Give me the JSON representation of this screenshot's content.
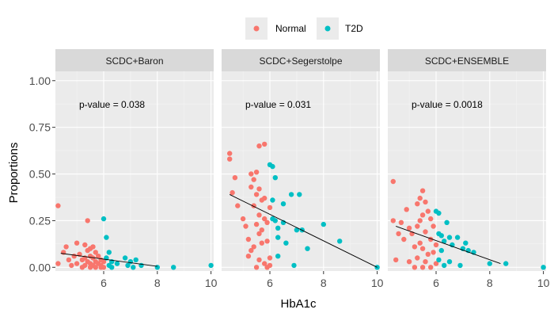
{
  "chart_data": {
    "type": "scatter",
    "xlabel": "HbA1c",
    "ylabel": "Proportions",
    "xlim": [
      4.2,
      10.1
    ],
    "ylim": [
      -0.02,
      1.05
    ],
    "x_ticks": [
      6,
      8,
      10
    ],
    "x_tick_labels": [
      "6",
      "8",
      "10"
    ],
    "y_ticks": [
      0,
      0.25,
      0.5,
      0.75,
      1.0
    ],
    "y_tick_labels": [
      "0.00",
      "0.25",
      "0.50",
      "0.75",
      "1.00"
    ],
    "grid": true,
    "legend": {
      "position": "top",
      "entries": [
        {
          "label": "Normal",
          "color": "#F8766D"
        },
        {
          "label": "T2D",
          "color": "#00BFC4"
        }
      ]
    },
    "panels": [
      {
        "strip": "SCDC+Baron",
        "annotation": "p-value = 0.038",
        "trend": {
          "x": [
            4.4,
            8.0
          ],
          "y": [
            0.075,
            0.005
          ]
        },
        "series": [
          {
            "name": "Normal",
            "points": [
              [
                4.3,
                0.33
              ],
              [
                4.3,
                0.02
              ],
              [
                4.5,
                0.08
              ],
              [
                4.6,
                0.11
              ],
              [
                4.7,
                0.04
              ],
              [
                4.8,
                0.01
              ],
              [
                4.9,
                0.06
              ],
              [
                5.0,
                0.13
              ],
              [
                5.0,
                0.02
              ],
              [
                5.1,
                0.07
              ],
              [
                5.2,
                0.04
              ],
              [
                5.2,
                0.0
              ],
              [
                5.3,
                0.12
              ],
              [
                5.3,
                0.05
              ],
              [
                5.3,
                0.01
              ],
              [
                5.4,
                0.25
              ],
              [
                5.4,
                0.09
              ],
              [
                5.4,
                0.03
              ],
              [
                5.5,
                0.1
              ],
              [
                5.5,
                0.06
              ],
              [
                5.5,
                0.02
              ],
              [
                5.5,
                0.0
              ],
              [
                5.6,
                0.11
              ],
              [
                5.6,
                0.05
              ],
              [
                5.6,
                0.01
              ],
              [
                5.7,
                0.08
              ],
              [
                5.7,
                0.03
              ],
              [
                5.7,
                0.0
              ],
              [
                5.8,
                0.06
              ],
              [
                5.8,
                0.02
              ],
              [
                5.9,
                0.04
              ],
              [
                5.9,
                0.01
              ],
              [
                5.9,
                0.0
              ],
              [
                6.0,
                0.03
              ],
              [
                6.0,
                0.0
              ]
            ]
          },
          {
            "name": "T2D",
            "points": [
              [
                6.0,
                0.26
              ],
              [
                6.1,
                0.16
              ],
              [
                6.1,
                0.05
              ],
              [
                6.2,
                0.08
              ],
              [
                6.2,
                0.01
              ],
              [
                6.3,
                0.03
              ],
              [
                6.3,
                0.0
              ],
              [
                6.5,
                0.02
              ],
              [
                6.8,
                0.05
              ],
              [
                6.9,
                0.01
              ],
              [
                7.0,
                0.03
              ],
              [
                7.1,
                0.0
              ],
              [
                7.2,
                0.04
              ],
              [
                7.4,
                0.01
              ],
              [
                8.0,
                0.0
              ],
              [
                8.6,
                0.0
              ],
              [
                10.0,
                0.01
              ]
            ]
          }
        ]
      },
      {
        "strip": "SCDC+Segerstolpe",
        "annotation": "p-value = 0.031",
        "trend": {
          "x": [
            4.5,
            10.0
          ],
          "y": [
            0.39,
            0.0
          ]
        },
        "series": [
          {
            "name": "Normal",
            "points": [
              [
                4.5,
                0.61
              ],
              [
                4.5,
                0.58
              ],
              [
                4.6,
                0.4
              ],
              [
                4.7,
                0.48
              ],
              [
                4.8,
                0.33
              ],
              [
                5.0,
                0.26
              ],
              [
                5.1,
                0.22
              ],
              [
                5.2,
                0.15
              ],
              [
                5.2,
                0.06
              ],
              [
                5.3,
                0.5
              ],
              [
                5.3,
                0.43
              ],
              [
                5.3,
                0.09
              ],
              [
                5.4,
                0.47
              ],
              [
                5.4,
                0.33
              ],
              [
                5.4,
                0.11
              ],
              [
                5.5,
                0.51
              ],
              [
                5.5,
                0.39
              ],
              [
                5.5,
                0.23
              ],
              [
                5.5,
                0.0
              ],
              [
                5.6,
                0.65
              ],
              [
                5.6,
                0.42
              ],
              [
                5.6,
                0.28
              ],
              [
                5.6,
                0.18
              ],
              [
                5.6,
                0.04
              ],
              [
                5.7,
                0.36
              ],
              [
                5.7,
                0.2
              ],
              [
                5.7,
                0.13
              ],
              [
                5.8,
                0.66
              ],
              [
                5.8,
                0.37
              ],
              [
                5.8,
                0.26
              ],
              [
                5.8,
                0.02
              ],
              [
                5.9,
                0.24
              ],
              [
                5.9,
                0.14
              ],
              [
                5.9,
                0.0
              ],
              [
                6.0,
                0.32
              ],
              [
                6.0,
                0.05
              ],
              [
                6.0,
                0.01
              ]
            ]
          },
          {
            "name": "T2D",
            "points": [
              [
                6.0,
                0.55
              ],
              [
                6.1,
                0.54
              ],
              [
                6.1,
                0.36
              ],
              [
                6.1,
                0.26
              ],
              [
                6.2,
                0.48
              ],
              [
                6.2,
                0.25
              ],
              [
                6.3,
                0.21
              ],
              [
                6.3,
                0.16
              ],
              [
                6.3,
                0.06
              ],
              [
                6.5,
                0.34
              ],
              [
                6.5,
                0.24
              ],
              [
                6.6,
                0.13
              ],
              [
                6.8,
                0.39
              ],
              [
                6.9,
                0.01
              ],
              [
                7.0,
                0.2
              ],
              [
                7.1,
                0.39
              ],
              [
                7.2,
                0.2
              ],
              [
                7.4,
                0.1
              ],
              [
                8.0,
                0.23
              ],
              [
                8.6,
                0.14
              ],
              [
                10.0,
                0.0
              ]
            ]
          }
        ]
      },
      {
        "strip": "SCDC+ENSEMBLE",
        "annotation": "p-value = 0.0018",
        "trend": {
          "x": [
            4.5,
            8.4
          ],
          "y": [
            0.22,
            0.02
          ]
        },
        "series": [
          {
            "name": "Normal",
            "points": [
              [
                4.4,
                0.46
              ],
              [
                4.4,
                0.25
              ],
              [
                4.5,
                0.04
              ],
              [
                4.6,
                0.18
              ],
              [
                4.7,
                0.24
              ],
              [
                4.8,
                0.15
              ],
              [
                4.9,
                0.31
              ],
              [
                5.0,
                0.21
              ],
              [
                5.0,
                0.03
              ],
              [
                5.1,
                0.18
              ],
              [
                5.2,
                0.11
              ],
              [
                5.2,
                0.0
              ],
              [
                5.3,
                0.34
              ],
              [
                5.3,
                0.22
              ],
              [
                5.3,
                0.05
              ],
              [
                5.4,
                0.37
              ],
              [
                5.4,
                0.25
              ],
              [
                5.4,
                0.13
              ],
              [
                5.5,
                0.41
              ],
              [
                5.5,
                0.28
              ],
              [
                5.5,
                0.1
              ],
              [
                5.5,
                0.0
              ],
              [
                5.6,
                0.35
              ],
              [
                5.6,
                0.19
              ],
              [
                5.6,
                0.03
              ],
              [
                5.7,
                0.3
              ],
              [
                5.7,
                0.07
              ],
              [
                5.8,
                0.26
              ],
              [
                5.8,
                0.15
              ],
              [
                5.8,
                0.0
              ],
              [
                5.9,
                0.22
              ],
              [
                5.9,
                0.08
              ],
              [
                6.0,
                0.12
              ],
              [
                6.0,
                0.02
              ]
            ]
          },
          {
            "name": "T2D",
            "points": [
              [
                6.0,
                0.3
              ],
              [
                6.1,
                0.29
              ],
              [
                6.1,
                0.18
              ],
              [
                6.1,
                0.04
              ],
              [
                6.2,
                0.17
              ],
              [
                6.2,
                0.09
              ],
              [
                6.3,
                0.14
              ],
              [
                6.3,
                0.01
              ],
              [
                6.4,
                0.24
              ],
              [
                6.5,
                0.16
              ],
              [
                6.5,
                0.03
              ],
              [
                6.6,
                0.12
              ],
              [
                6.8,
                0.16
              ],
              [
                6.9,
                0.01
              ],
              [
                7.0,
                0.1
              ],
              [
                7.1,
                0.13
              ],
              [
                7.2,
                0.09
              ],
              [
                7.4,
                0.08
              ],
              [
                8.0,
                0.02
              ],
              [
                8.6,
                0.02
              ],
              [
                10.0,
                0.0
              ]
            ]
          }
        ]
      }
    ]
  }
}
